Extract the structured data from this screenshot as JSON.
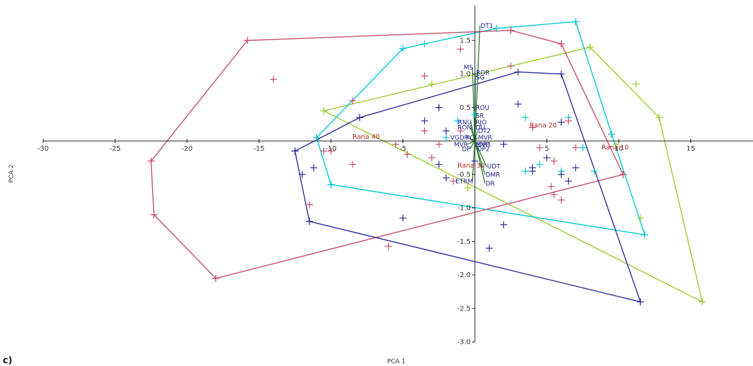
{
  "chart_data": {
    "type": "scatter",
    "title": "",
    "xlabel": "PCA 1",
    "ylabel": "PCA 2",
    "xlim": [
      -30,
      18
    ],
    "ylim": [
      -3.0,
      1.95
    ],
    "xticks": [
      -30,
      -25,
      -20,
      -15,
      -10,
      -5,
      5,
      10,
      15
    ],
    "yticks": [
      -3.0,
      -2.5,
      -2.0,
      -1.5,
      -1.0,
      -0.5,
      0.5,
      1.0,
      1.5
    ],
    "tick_labels_x": [
      "-30",
      "-25",
      "-20",
      "-15",
      "-10",
      "-5",
      "5",
      "10",
      "15"
    ],
    "tick_labels_y": [
      "-3.0",
      "-2.5",
      "-2.0",
      "-1.5",
      "-1.0",
      "-0.5",
      "0.5",
      "1.0",
      "1.5"
    ],
    "grid": false,
    "corner_mark": "c)",
    "series": [
      {
        "group": "Rana 10",
        "color": "#9acd32",
        "points": [
          [
            8,
            1.4
          ],
          [
            11.2,
            0.85
          ],
          [
            12.8,
            0.35
          ],
          [
            9.8,
            -0.05
          ],
          [
            15.8,
            -2.4
          ],
          [
            11.5,
            -1.15
          ],
          [
            -10.5,
            0.45
          ],
          [
            -3,
            0.85
          ],
          [
            -0.5,
            -0.7
          ]
        ],
        "hull": [
          [
            8,
            1.4
          ],
          [
            12.8,
            0.35
          ],
          [
            15.8,
            -2.4
          ],
          [
            -10.5,
            0.45
          ],
          [
            8,
            1.4
          ]
        ]
      },
      {
        "group": "Rana 20",
        "color": "#00c8d7",
        "points": [
          [
            7,
            1.78
          ],
          [
            1.5,
            1.68
          ],
          [
            -5,
            1.38
          ],
          [
            -3.5,
            1.45
          ],
          [
            -11,
            0.05
          ],
          [
            -10,
            -0.65
          ],
          [
            9.5,
            0.1
          ],
          [
            11.8,
            -1.4
          ],
          [
            7.5,
            -0.1
          ],
          [
            6.5,
            0.35
          ],
          [
            8.3,
            -0.45
          ],
          [
            3.5,
            0.35
          ],
          [
            0,
            0.4
          ],
          [
            4.5,
            -0.35
          ],
          [
            3.5,
            -0.45
          ],
          [
            6,
            -0.45
          ],
          [
            -2,
            0.05
          ],
          [
            -1.2,
            0.3
          ]
        ],
        "hull": [
          [
            1.5,
            1.68
          ],
          [
            7,
            1.78
          ],
          [
            9.5,
            0.1
          ],
          [
            11.8,
            -1.4
          ],
          [
            -10,
            -0.65
          ],
          [
            -11,
            0.05
          ],
          [
            -5,
            1.38
          ],
          [
            1.5,
            1.68
          ]
        ]
      },
      {
        "group": "Rana 30",
        "color": "#c24f6a",
        "points": [
          [
            -15.8,
            1.5
          ],
          [
            2.5,
            1.65
          ],
          [
            6,
            1.45
          ],
          [
            10.3,
            -0.5
          ],
          [
            -11.5,
            -0.95
          ],
          [
            -22.5,
            -0.3
          ],
          [
            -22.3,
            -1.1
          ],
          [
            -14,
            0.92
          ],
          [
            -18,
            -2.05
          ],
          [
            -1,
            1.37
          ],
          [
            2.5,
            1.12
          ],
          [
            -3.5,
            0.97
          ],
          [
            -8.5,
            0.6
          ],
          [
            -2.5,
            0.5
          ],
          [
            6.5,
            0.3
          ],
          [
            4.5,
            -0.1
          ],
          [
            5.5,
            -0.3
          ],
          [
            5.3,
            -0.68
          ],
          [
            6,
            -0.88
          ],
          [
            5.5,
            -0.8
          ],
          [
            7,
            -0.1
          ],
          [
            -6,
            -1.57
          ],
          [
            -1.5,
            -0.6
          ],
          [
            -3.5,
            0.15
          ],
          [
            -10.5,
            -0.15
          ],
          [
            -8.5,
            -0.35
          ],
          [
            -4.7,
            -0.2
          ],
          [
            -3,
            -0.25
          ],
          [
            -5.5,
            -0.05
          ],
          [
            -2.5,
            -0.05
          ],
          [
            4,
            0.2
          ],
          [
            -1,
            0.15
          ],
          [
            -10,
            -0.15
          ]
        ],
        "hull": [
          [
            -15.8,
            1.5
          ],
          [
            2.5,
            1.65
          ],
          [
            6,
            1.45
          ],
          [
            10.3,
            -0.5
          ],
          [
            -18,
            -2.05
          ],
          [
            -22.3,
            -1.1
          ],
          [
            -22.5,
            -0.3
          ],
          [
            -15.8,
            1.5
          ]
        ]
      },
      {
        "group": "Rana 40",
        "color": "#2c2c96",
        "points": [
          [
            -12.5,
            -0.15
          ],
          [
            -11.5,
            -1.2
          ],
          [
            -11.2,
            -0.4
          ],
          [
            -12,
            -0.5
          ],
          [
            -8,
            0.35
          ],
          [
            -2.5,
            0.5
          ],
          [
            3,
            0.55
          ],
          [
            6,
            0.28
          ],
          [
            7,
            -0.4
          ],
          [
            11.5,
            -2.4
          ],
          [
            2,
            -1.25
          ],
          [
            1,
            -1.6
          ],
          [
            -5,
            -1.15
          ],
          [
            -2,
            -0.55
          ],
          [
            -2.5,
            -0.35
          ],
          [
            -3.5,
            0.3
          ],
          [
            -2,
            0.15
          ],
          [
            2,
            -0.05
          ],
          [
            4,
            -0.4
          ],
          [
            5,
            -0.25
          ],
          [
            4,
            -0.45
          ],
          [
            6,
            -0.5
          ],
          [
            6.5,
            -0.6
          ],
          [
            0,
            -0.3
          ]
        ],
        "hull": [
          [
            -8,
            0.35
          ],
          [
            3,
            1.03
          ],
          [
            6,
            1.0
          ],
          [
            11.5,
            -2.4
          ],
          [
            -11.5,
            -1.2
          ],
          [
            -12.5,
            -0.15
          ],
          [
            -8,
            0.35
          ]
        ]
      }
    ],
    "group_labels": [
      {
        "text": "Rana 10",
        "x": 8.8,
        "y": -0.13
      },
      {
        "text": "Rana 20",
        "x": 3.8,
        "y": 0.2
      },
      {
        "text": "Rana 30",
        "x": -1.2,
        "y": -0.4
      },
      {
        "text": "Rana 40",
        "x": -8.5,
        "y": 0.03
      }
    ],
    "loadings": {
      "color": "#2e7d32",
      "vectors": [
        {
          "label": "DT1",
          "x": 1.0,
          "y": 1.72
        },
        {
          "label": "MS",
          "x": -0.5,
          "y": 1.1
        },
        {
          "label": "ROR",
          "x": 0.1,
          "y": 1.02
        },
        {
          "label": "SG",
          "x": 0.05,
          "y": 0.95
        },
        {
          "label": "ROU",
          "x": 0.0,
          "y": 0.5
        },
        {
          "label": "SR",
          "x": 0.0,
          "y": 0.38
        },
        {
          "label": "RNU",
          "x": -0.8,
          "y": 0.28
        },
        {
          "label": "RJO",
          "x": 0.0,
          "y": 0.28
        },
        {
          "label": "RON",
          "x": -0.8,
          "y": 0.2
        },
        {
          "label": "DU",
          "x": 0.0,
          "y": 0.2
        },
        {
          "label": "DT2",
          "x": 0.5,
          "y": 0.15
        },
        {
          "label": "MVR",
          "x": 0.5,
          "y": 0.05
        },
        {
          "label": "VGDP",
          "x": -1.5,
          "y": 0.05
        },
        {
          "label": "PC",
          "x": -0.3,
          "y": 0.05
        },
        {
          "label": "MVR",
          "x": -1.5,
          "y": -0.05
        },
        {
          "label": "MVP",
          "x": 0.1,
          "y": -0.05
        },
        {
          "label": "DR1",
          "x": 0.5,
          "y": -0.05
        },
        {
          "label": "DP",
          "x": -1.0,
          "y": -0.12
        },
        {
          "label": "DP2",
          "x": 0.3,
          "y": -0.12
        },
        {
          "label": "UDT",
          "x": 2.3,
          "y": -0.38
        },
        {
          "label": "DMR",
          "x": 2.0,
          "y": -0.5
        },
        {
          "label": "ETRM",
          "x": -0.5,
          "y": -0.6
        },
        {
          "label": "DR",
          "x": 2.0,
          "y": -0.63
        }
      ]
    }
  }
}
